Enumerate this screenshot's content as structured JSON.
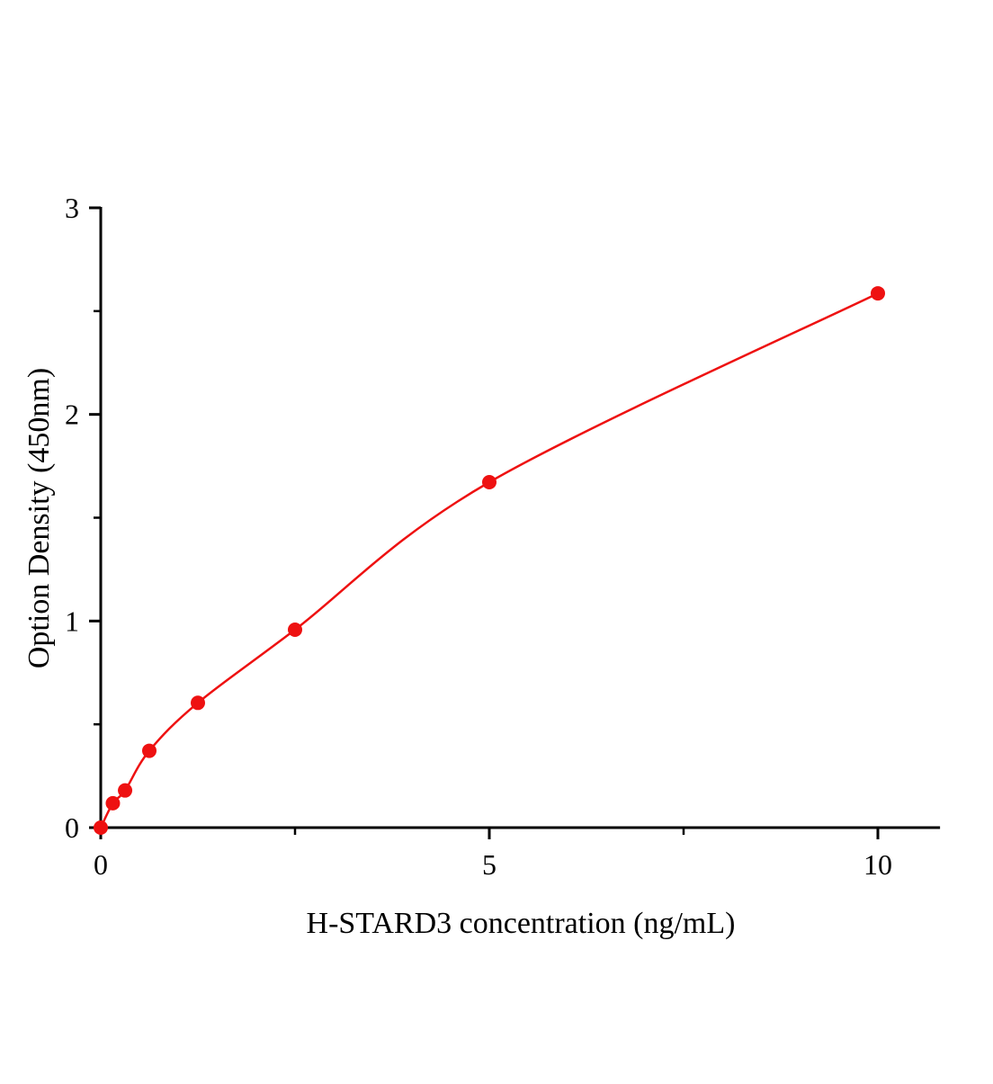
{
  "chart_data": {
    "type": "scatter",
    "title": "",
    "xlabel": "H-STARD3 concentration (ng/mL)",
    "ylabel": "Option Density (450nm)",
    "xlim": [
      0,
      10.8
    ],
    "ylim": [
      0,
      3
    ],
    "x_ticks": [
      0,
      5,
      10
    ],
    "x_tick_labels": [
      "0",
      "5",
      "10"
    ],
    "y_ticks": [
      0,
      1,
      2,
      3
    ],
    "y_tick_labels": [
      "0",
      "1",
      "2",
      "3"
    ],
    "grid": false,
    "legend": "none",
    "color": "#ee1111",
    "series": [
      {
        "x": [
          0,
          0.156,
          0.313,
          0.625,
          1.25,
          2.5,
          5,
          10
        ],
        "y": [
          0.0,
          0.118,
          0.18,
          0.372,
          0.604,
          0.958,
          1.672,
          2.586
        ],
        "fit_line": true
      }
    ]
  }
}
